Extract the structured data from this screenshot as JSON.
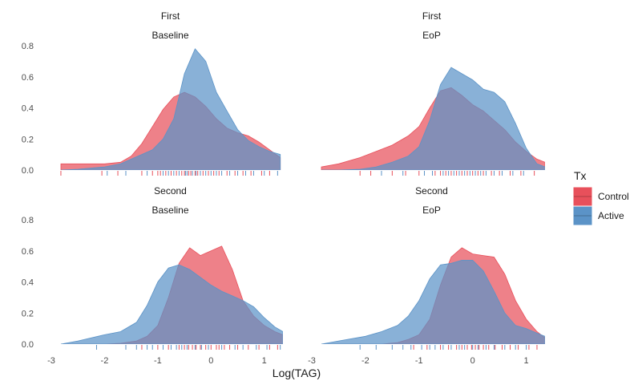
{
  "chart_data": {
    "type": "area",
    "xlabel": "Log(TAG)",
    "ylabel": "",
    "xlim": [
      -3,
      1.35
    ],
    "ylim": [
      0,
      0.8
    ],
    "x_ticks": [
      -3,
      -2,
      -1,
      0,
      1
    ],
    "y_ticks": [
      0.0,
      0.2,
      0.4,
      0.6,
      0.8
    ],
    "y_tick_labels": [
      "0.0",
      "0.2",
      "0.4",
      "0.6",
      "0.8"
    ],
    "legend": {
      "title": "Tx",
      "position": "right",
      "entries": [
        {
          "name": "Control",
          "color": "#e8505b"
        },
        {
          "name": "Active",
          "color": "#5b93c7"
        }
      ]
    },
    "overlap_color": "#6f7098",
    "panels": [
      {
        "strip_top": "First",
        "strip_bottom": "Baseline",
        "series": [
          {
            "name": "Control",
            "x": [
              -2.82,
              -2.5,
              -2.0,
              -1.7,
              -1.5,
              -1.3,
              -1.1,
              -0.9,
              -0.7,
              -0.5,
              -0.3,
              -0.1,
              0.1,
              0.3,
              0.5,
              0.7,
              0.9,
              1.1,
              1.3
            ],
            "y": [
              0.04,
              0.04,
              0.04,
              0.05,
              0.09,
              0.17,
              0.28,
              0.39,
              0.47,
              0.5,
              0.47,
              0.41,
              0.33,
              0.27,
              0.24,
              0.22,
              0.18,
              0.13,
              0.08
            ]
          },
          {
            "name": "Active",
            "x": [
              -2.82,
              -2.5,
              -2.0,
              -1.7,
              -1.5,
              -1.3,
              -1.1,
              -0.9,
              -0.7,
              -0.5,
              -0.3,
              -0.1,
              0.1,
              0.3,
              0.5,
              0.7,
              0.9,
              1.1,
              1.3
            ],
            "y": [
              0.0,
              0.005,
              0.02,
              0.04,
              0.07,
              0.1,
              0.13,
              0.2,
              0.33,
              0.62,
              0.78,
              0.7,
              0.5,
              0.38,
              0.26,
              0.19,
              0.15,
              0.12,
              0.1
            ]
          }
        ],
        "rug_control": [
          -2.82,
          -2.05,
          -1.75,
          -1.3,
          -1.1,
          -1.0,
          -0.95,
          -0.85,
          -0.75,
          -0.65,
          -0.55,
          -0.5,
          -0.42,
          -0.38,
          -0.3,
          -0.25,
          -0.15,
          -0.05,
          0.05,
          0.15,
          0.3,
          0.45,
          0.6,
          0.75,
          0.95,
          1.1
        ],
        "rug_active": [
          -1.95,
          -1.6,
          -1.2,
          -0.9,
          -0.8,
          -0.7,
          -0.6,
          -0.48,
          -0.45,
          -0.35,
          -0.28,
          -0.2,
          -0.1,
          0.0,
          0.1,
          0.2,
          0.35,
          0.5,
          0.65,
          0.8,
          1.0,
          1.25
        ]
      },
      {
        "strip_top": "First",
        "strip_bottom": "EoP",
        "series": [
          {
            "name": "Control",
            "x": [
              -2.82,
              -2.5,
              -2.1,
              -1.8,
              -1.5,
              -1.2,
              -1.0,
              -0.8,
              -0.6,
              -0.4,
              -0.2,
              0.0,
              0.2,
              0.4,
              0.6,
              0.8,
              1.0,
              1.2,
              1.35
            ],
            "y": [
              0.02,
              0.04,
              0.08,
              0.12,
              0.16,
              0.22,
              0.28,
              0.4,
              0.51,
              0.53,
              0.48,
              0.42,
              0.38,
              0.32,
              0.26,
              0.18,
              0.12,
              0.07,
              0.05
            ]
          },
          {
            "name": "Active",
            "x": [
              -2.82,
              -2.5,
              -2.1,
              -1.8,
              -1.5,
              -1.2,
              -1.0,
              -0.8,
              -0.6,
              -0.4,
              -0.2,
              0.0,
              0.2,
              0.4,
              0.6,
              0.8,
              1.0,
              1.2,
              1.35
            ],
            "y": [
              0.0,
              0.0,
              0.005,
              0.02,
              0.05,
              0.09,
              0.15,
              0.32,
              0.55,
              0.66,
              0.62,
              0.58,
              0.52,
              0.5,
              0.44,
              0.3,
              0.14,
              0.04,
              0.02
            ]
          }
        ],
        "rug_control": [
          -2.1,
          -1.9,
          -1.5,
          -1.25,
          -1.0,
          -0.7,
          -0.6,
          -0.5,
          -0.4,
          -0.3,
          -0.2,
          -0.1,
          0.0,
          0.1,
          0.2,
          0.35,
          0.5,
          0.7,
          0.9,
          1.15
        ],
        "rug_active": [
          -1.7,
          -1.3,
          -0.9,
          -0.75,
          -0.55,
          -0.45,
          -0.35,
          -0.25,
          -0.15,
          -0.05,
          0.05,
          0.15,
          0.25,
          0.4,
          0.55,
          0.75,
          0.95
        ]
      },
      {
        "strip_top": "Second",
        "strip_bottom": "Baseline",
        "series": [
          {
            "name": "Control",
            "x": [
              -2.82,
              -2.5,
              -2.0,
              -1.7,
              -1.4,
              -1.2,
              -1.0,
              -0.8,
              -0.6,
              -0.4,
              -0.2,
              0.0,
              0.2,
              0.4,
              0.6,
              0.8,
              1.0,
              1.2,
              1.35
            ],
            "y": [
              0.0,
              0.0,
              0.0,
              0.005,
              0.02,
              0.05,
              0.12,
              0.3,
              0.52,
              0.62,
              0.57,
              0.6,
              0.63,
              0.48,
              0.28,
              0.18,
              0.12,
              0.08,
              0.06
            ]
          },
          {
            "name": "Active",
            "x": [
              -2.82,
              -2.5,
              -2.0,
              -1.7,
              -1.4,
              -1.2,
              -1.0,
              -0.8,
              -0.6,
              -0.4,
              -0.2,
              0.0,
              0.2,
              0.4,
              0.6,
              0.8,
              1.0,
              1.2,
              1.35
            ],
            "y": [
              0.0,
              0.02,
              0.06,
              0.08,
              0.14,
              0.25,
              0.4,
              0.49,
              0.51,
              0.48,
              0.43,
              0.38,
              0.34,
              0.31,
              0.28,
              0.24,
              0.17,
              0.11,
              0.08
            ]
          }
        ],
        "rug_control": [
          -1.3,
          -1.0,
          -0.8,
          -0.6,
          -0.5,
          -0.42,
          -0.35,
          -0.28,
          -0.2,
          -0.1,
          0.0,
          0.1,
          0.15,
          0.25,
          0.35,
          0.5,
          0.7,
          0.9,
          1.1,
          1.25
        ],
        "rug_active": [
          -2.15,
          -1.6,
          -1.4,
          -1.2,
          -1.1,
          -0.9,
          -0.75,
          -0.65,
          -0.55,
          -0.45,
          -0.3,
          -0.18,
          -0.05,
          0.2,
          0.45,
          0.6,
          0.85,
          1.05,
          1.3
        ]
      },
      {
        "strip_top": "Second",
        "strip_bottom": "EoP",
        "series": [
          {
            "name": "Control",
            "x": [
              -2.82,
              -2.5,
              -2.0,
              -1.7,
              -1.4,
              -1.2,
              -1.0,
              -0.8,
              -0.6,
              -0.4,
              -0.2,
              0.0,
              0.2,
              0.4,
              0.6,
              0.8,
              1.0,
              1.2,
              1.35
            ],
            "y": [
              0.0,
              0.0,
              0.0,
              0.0,
              0.01,
              0.03,
              0.06,
              0.16,
              0.38,
              0.56,
              0.62,
              0.58,
              0.57,
              0.56,
              0.45,
              0.28,
              0.16,
              0.08,
              0.04
            ]
          },
          {
            "name": "Active",
            "x": [
              -2.82,
              -2.5,
              -2.0,
              -1.7,
              -1.4,
              -1.2,
              -1.0,
              -0.8,
              -0.6,
              -0.4,
              -0.2,
              0.0,
              0.2,
              0.4,
              0.6,
              0.8,
              1.0,
              1.2,
              1.35
            ],
            "y": [
              0.0,
              0.02,
              0.05,
              0.08,
              0.12,
              0.18,
              0.28,
              0.42,
              0.51,
              0.52,
              0.54,
              0.54,
              0.47,
              0.34,
              0.2,
              0.12,
              0.1,
              0.07,
              0.05
            ]
          }
        ],
        "rug_control": [
          -1.1,
          -0.85,
          -0.6,
          -0.45,
          -0.3,
          -0.2,
          -0.1,
          -0.02,
          0.05,
          0.12,
          0.2,
          0.3,
          0.42,
          0.55,
          0.7,
          0.85,
          1.05,
          1.2
        ],
        "rug_active": [
          -2.1,
          -1.8,
          -1.5,
          -1.3,
          -1.15,
          -0.95,
          -0.8,
          -0.7,
          -0.55,
          -0.4,
          -0.25,
          -0.15,
          0.0,
          0.1,
          0.25,
          0.4,
          0.6,
          0.8,
          1.0
        ]
      }
    ]
  }
}
